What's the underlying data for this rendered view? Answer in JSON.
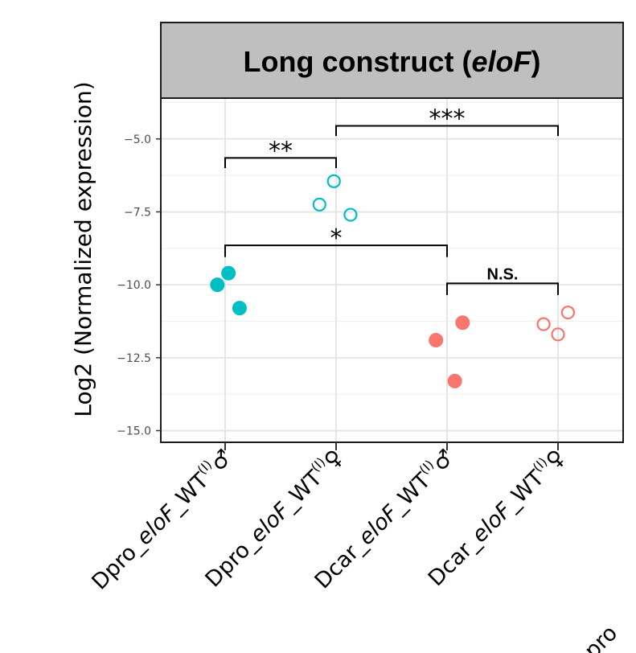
{
  "chart_data": {
    "type": "scatter",
    "title": "Long construct (",
    "title_italic": "eloF",
    "title_end": ")",
    "ylabel": "Log2 (Normalized expression)",
    "xlabel": "",
    "ylim": [
      -15.4,
      -3.6
    ],
    "yticks": [
      -5.0,
      -7.5,
      -10.0,
      -12.5,
      -15.0
    ],
    "ytick_labels": [
      "−5.0",
      "−7.5",
      "−10.0",
      "−12.5",
      "−15.0"
    ],
    "categories": [
      {
        "prefix": "Dpro_",
        "italic": "eloF",
        "suffix": "_WT",
        "sup": "(I)",
        "sex": "♂"
      },
      {
        "prefix": "Dpro_",
        "italic": "eloF",
        "suffix": "_WT",
        "sup": "(I)",
        "sex": "♀"
      },
      {
        "prefix": "Dcar_",
        "italic": "eloF",
        "suffix": "_WT",
        "sup": "(I)",
        "sex": "♂"
      },
      {
        "prefix": "Dcar_",
        "italic": "eloF",
        "suffix": "_WT",
        "sup": "(I)",
        "sex": "♀"
      }
    ],
    "clipped_label": "pro",
    "series": [
      {
        "category": 0,
        "color": "#00BFC4",
        "filled": true,
        "points": [
          {
            "jitter": -0.07,
            "y": -10.0
          },
          {
            "jitter": 0.03,
            "y": -9.6
          },
          {
            "jitter": 0.13,
            "y": -10.8
          }
        ]
      },
      {
        "category": 1,
        "color": "#00BFC4",
        "filled": false,
        "points": [
          {
            "jitter": -0.15,
            "y": -7.25
          },
          {
            "jitter": -0.02,
            "y": -6.45
          },
          {
            "jitter": 0.13,
            "y": -7.6
          }
        ]
      },
      {
        "category": 2,
        "color": "#F8766D",
        "filled": true,
        "points": [
          {
            "jitter": -0.1,
            "y": -11.9
          },
          {
            "jitter": 0.07,
            "y": -13.3
          },
          {
            "jitter": 0.14,
            "y": -11.3
          }
        ]
      },
      {
        "category": 3,
        "color": "#F8766D",
        "filled": false,
        "points": [
          {
            "jitter": -0.13,
            "y": -11.35
          },
          {
            "jitter": 0.0,
            "y": -11.7
          },
          {
            "jitter": 0.09,
            "y": -10.95
          }
        ]
      }
    ],
    "significance": [
      {
        "from": 0,
        "to": 1,
        "y": -5.65,
        "tip": -6.0,
        "label": "**",
        "style": "star"
      },
      {
        "from": 1,
        "to": 3,
        "y": -4.55,
        "tip": -4.9,
        "label": "***",
        "style": "star"
      },
      {
        "from": 0,
        "to": 2,
        "y": -8.65,
        "tip": -9.05,
        "label": "*",
        "style": "star"
      },
      {
        "from": 2,
        "to": 3,
        "y": -9.95,
        "tip": -10.35,
        "label": "N.S.",
        "style": "text"
      }
    ],
    "grid": true,
    "legend": "none",
    "colors": {
      "panel_border": "#1a1a1a",
      "grid": "#ebebeb",
      "strip_fill": "#bfbfbf"
    }
  }
}
